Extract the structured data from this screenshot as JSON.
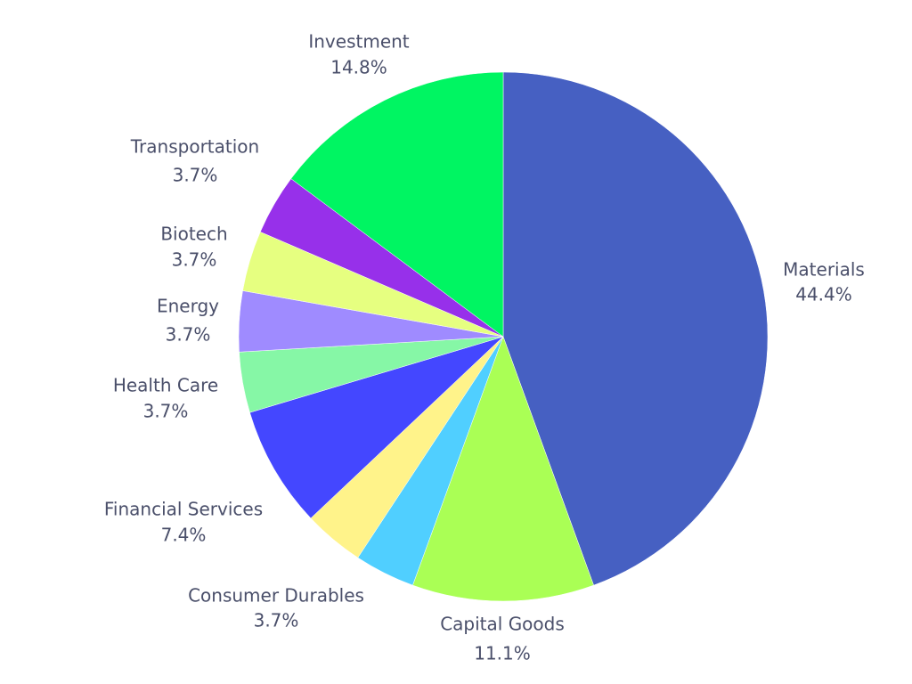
{
  "chart_data": {
    "type": "pie",
    "title": "",
    "start_angle_deg": 0,
    "direction": "clockwise",
    "slices": [
      {
        "label": "Materials",
        "value": 44.4,
        "value_label": "44.4%",
        "color": "#4660C2"
      },
      {
        "label": "Capital Goods",
        "value": 11.1,
        "value_label": "11.1%",
        "color": "#AAFF55"
      },
      {
        "label": "Consumer Durables",
        "value": 3.7,
        "value_label": "3.7%",
        "color": "#50CFFF"
      },
      {
        "label": "Financial Services",
        "value": 7.4,
        "value_label": "7.4%",
        "color": "#FFF38A"
      },
      {
        "label": "Health Care",
        "value": 3.7,
        "value_label": "3.7%",
        "color": "#4447FF"
      },
      {
        "label": "Energy",
        "value": 3.7,
        "value_label": "3.7%",
        "color": "#86F7A6"
      },
      {
        "label": "Biotech",
        "value": 3.7,
        "value_label": "3.7%",
        "color": "#9F8BFF"
      },
      {
        "label": "Transportation",
        "value": 3.7,
        "value_label": "3.7%",
        "color": "#E6FF80"
      },
      {
        "label": "Investment",
        "value": 14.8,
        "value_label": "14.8%",
        "color": "#9730EA"
      }
    ],
    "final_slice_color": "#00F562"
  }
}
